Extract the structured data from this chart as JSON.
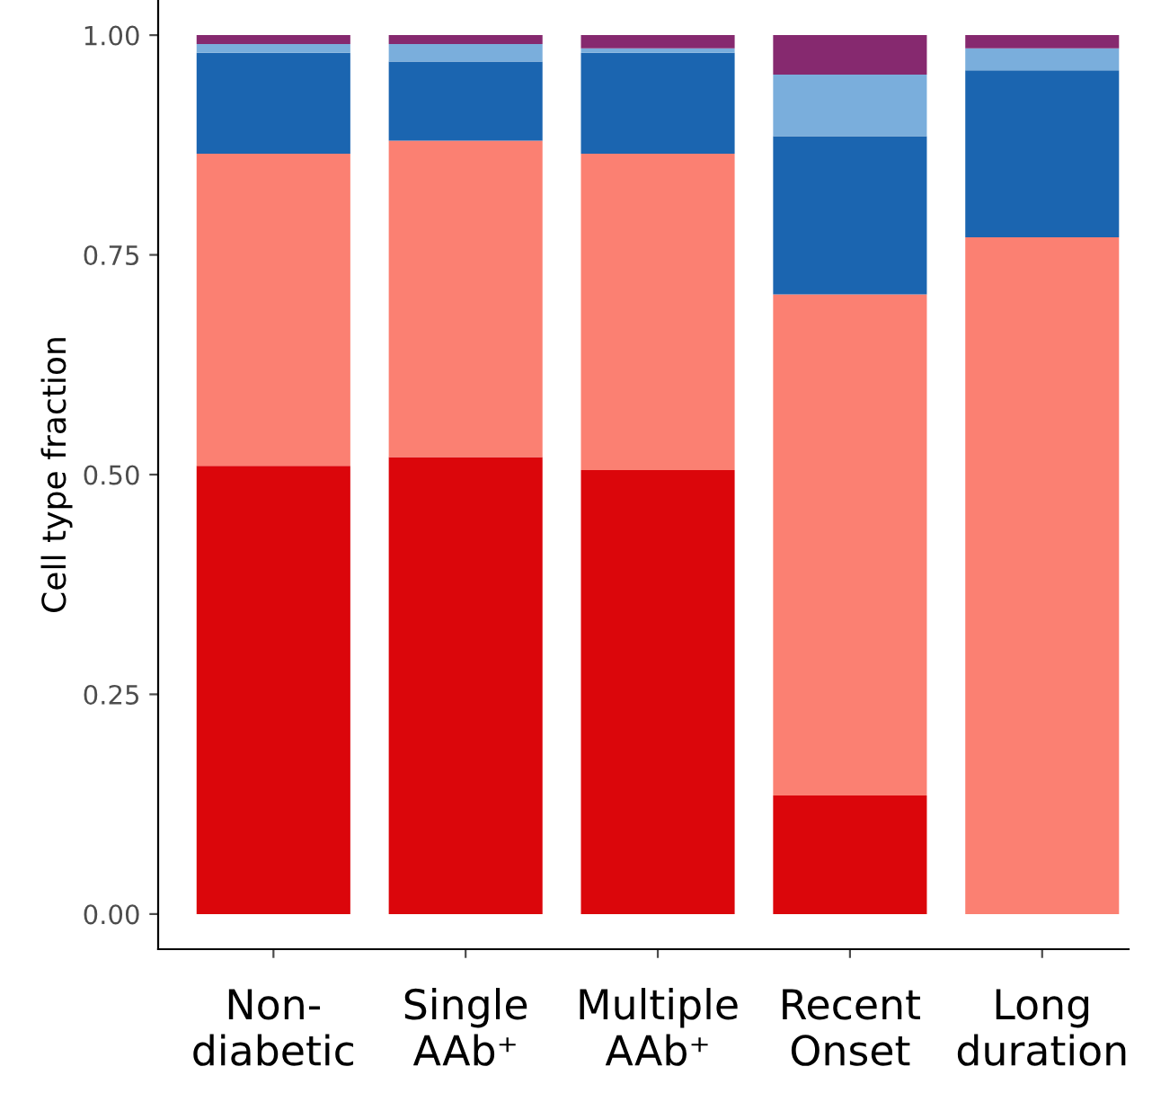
{
  "chart_data": {
    "type": "bar",
    "stacked": true,
    "ylabel": "Cell type fraction",
    "categories": [
      "Non-\ndiabetic",
      "Single\nAAb⁺",
      "Multiple\nAAb⁺",
      "Recent\nOnset",
      "Long\nduration"
    ],
    "series": [
      {
        "color": "#db060b",
        "values": [
          0.51,
          0.52,
          0.505,
          0.135,
          0
        ]
      },
      {
        "color": "#fb8072",
        "values": [
          0.355,
          0.36,
          0.36,
          0.57,
          0.77
        ]
      },
      {
        "color": "#1b65b0",
        "values": [
          0.115,
          0.09,
          0.115,
          0.18,
          0.19
        ]
      },
      {
        "color": "#7aaedc",
        "values": [
          0.01,
          0.02,
          0.005,
          0.07,
          0.025
        ]
      },
      {
        "color": "#86296f",
        "values": [
          0.01,
          0.01,
          0.015,
          0.045,
          0.015
        ]
      }
    ],
    "ylim": [
      -0.04,
      1.04
    ],
    "yticks": [
      {
        "value": 0,
        "label": "0.00"
      },
      {
        "value": 0.25,
        "label": "0.25"
      },
      {
        "value": 0.5,
        "label": "0.50"
      },
      {
        "value": 0.75,
        "label": "0.75"
      },
      {
        "value": 1,
        "label": "1.00"
      }
    ],
    "grid": false,
    "legend": false
  }
}
